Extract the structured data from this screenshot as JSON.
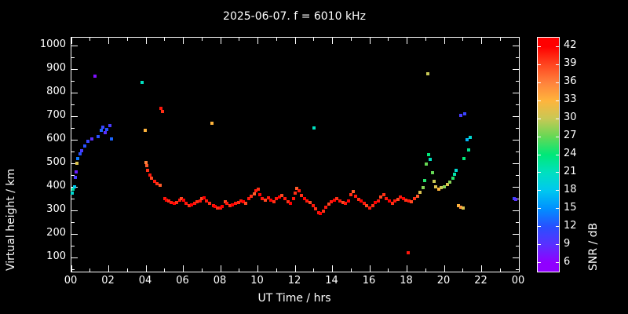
{
  "title": "2025-06-07. f = 6010 kHz",
  "colors": {
    "background": "#000000",
    "foreground": "#ffffff"
  },
  "chart_data": {
    "type": "scatter",
    "title": "2025-06-07. f = 6010 kHz",
    "xlabel": "UT Time / hrs",
    "ylabel": "Virtual height / km",
    "colorbar_label": "SNR / dB",
    "xlim": [
      0,
      24
    ],
    "ylim": [
      40,
      1035
    ],
    "grid": false,
    "x_ticks": [
      {
        "v": 0,
        "label": "00"
      },
      {
        "v": 2,
        "label": "02"
      },
      {
        "v": 4,
        "label": "04"
      },
      {
        "v": 6,
        "label": "06"
      },
      {
        "v": 8,
        "label": "08"
      },
      {
        "v": 10,
        "label": "10"
      },
      {
        "v": 12,
        "label": "12"
      },
      {
        "v": 14,
        "label": "14"
      },
      {
        "v": 16,
        "label": "16"
      },
      {
        "v": 18,
        "label": "18"
      },
      {
        "v": 20,
        "label": "20"
      },
      {
        "v": 22,
        "label": "22"
      },
      {
        "v": 24,
        "label": "00"
      }
    ],
    "y_ticks": [
      100,
      200,
      300,
      400,
      500,
      600,
      700,
      800,
      900,
      1000
    ],
    "colorbar": {
      "min": 4.5,
      "max": 43.5,
      "ticks": [
        6,
        9,
        12,
        15,
        18,
        21,
        24,
        27,
        30,
        33,
        36,
        39,
        42
      ],
      "stops": [
        {
          "v": 6,
          "c": "#9000ff"
        },
        {
          "v": 9,
          "c": "#5a30ff"
        },
        {
          "v": 12,
          "c": "#2850ff"
        },
        {
          "v": 15,
          "c": "#0090ff"
        },
        {
          "v": 18,
          "c": "#00c8f0"
        },
        {
          "v": 21,
          "c": "#00e0c0"
        },
        {
          "v": 24,
          "c": "#00e878"
        },
        {
          "v": 27,
          "c": "#66d855"
        },
        {
          "v": 30,
          "c": "#c8c855"
        },
        {
          "v": 33,
          "c": "#ffb43c"
        },
        {
          "v": 36,
          "c": "#ff823c"
        },
        {
          "v": 39,
          "c": "#ff4620"
        },
        {
          "v": 42,
          "c": "#ff0000"
        }
      ]
    },
    "points": [
      [
        0.05,
        375,
        20
      ],
      [
        0.1,
        390,
        22
      ],
      [
        0.15,
        400,
        18
      ],
      [
        0.2,
        440,
        10
      ],
      [
        0.25,
        465,
        8
      ],
      [
        0.3,
        500,
        31
      ],
      [
        0.35,
        520,
        14
      ],
      [
        0.45,
        540,
        12
      ],
      [
        0.55,
        555,
        10
      ],
      [
        0.7,
        575,
        12
      ],
      [
        0.9,
        595,
        11
      ],
      [
        1.1,
        605,
        9
      ],
      [
        1.25,
        870,
        7
      ],
      [
        1.45,
        615,
        12
      ],
      [
        1.6,
        640,
        13
      ],
      [
        1.7,
        655,
        11
      ],
      [
        1.8,
        630,
        9
      ],
      [
        1.9,
        645,
        12
      ],
      [
        2.05,
        660,
        10
      ],
      [
        2.15,
        605,
        13
      ],
      [
        3.8,
        845,
        21
      ],
      [
        3.95,
        640,
        33
      ],
      [
        4.0,
        505,
        36
      ],
      [
        4.05,
        490,
        38
      ],
      [
        4.1,
        470,
        40
      ],
      [
        4.2,
        452,
        41
      ],
      [
        4.3,
        438,
        39
      ],
      [
        4.45,
        425,
        41
      ],
      [
        4.6,
        415,
        40
      ],
      [
        4.75,
        408,
        38
      ],
      [
        4.8,
        735,
        41
      ],
      [
        4.9,
        722,
        40
      ],
      [
        5.0,
        352,
        41
      ],
      [
        5.1,
        345,
        42
      ],
      [
        5.2,
        340,
        40
      ],
      [
        5.35,
        335,
        41
      ],
      [
        5.5,
        330,
        42
      ],
      [
        5.65,
        335,
        40
      ],
      [
        5.8,
        345,
        41
      ],
      [
        5.9,
        352,
        39
      ],
      [
        6.0,
        345,
        42
      ],
      [
        6.15,
        332,
        41
      ],
      [
        6.3,
        320,
        40
      ],
      [
        6.45,
        325,
        42
      ],
      [
        6.6,
        330,
        41
      ],
      [
        6.75,
        336,
        40
      ],
      [
        6.9,
        342,
        41
      ],
      [
        7.0,
        350,
        39
      ],
      [
        7.1,
        355,
        42
      ],
      [
        7.25,
        340,
        41
      ],
      [
        7.4,
        330,
        40
      ],
      [
        7.55,
        670,
        33
      ],
      [
        7.6,
        322,
        41
      ],
      [
        7.7,
        318,
        42
      ],
      [
        7.85,
        312,
        40
      ],
      [
        8.0,
        310,
        41
      ],
      [
        8.1,
        318,
        42
      ],
      [
        8.25,
        338,
        39
      ],
      [
        8.35,
        330,
        41
      ],
      [
        8.5,
        322,
        40
      ],
      [
        8.65,
        325,
        42
      ],
      [
        8.8,
        330,
        41
      ],
      [
        8.95,
        335,
        40
      ],
      [
        9.1,
        342,
        41
      ],
      [
        9.2,
        338,
        42
      ],
      [
        9.35,
        332,
        39
      ],
      [
        9.5,
        350,
        41
      ],
      [
        9.65,
        360,
        40
      ],
      [
        9.8,
        372,
        38
      ],
      [
        9.9,
        385,
        41
      ],
      [
        10.0,
        390,
        40
      ],
      [
        10.1,
        368,
        42
      ],
      [
        10.25,
        352,
        41
      ],
      [
        10.4,
        345,
        39
      ],
      [
        10.55,
        355,
        41
      ],
      [
        10.7,
        345,
        42
      ],
      [
        10.85,
        338,
        40
      ],
      [
        11.0,
        350,
        41
      ],
      [
        11.15,
        358,
        42
      ],
      [
        11.3,
        365,
        39
      ],
      [
        11.45,
        350,
        41
      ],
      [
        11.6,
        336,
        40
      ],
      [
        11.75,
        330,
        42
      ],
      [
        11.9,
        352,
        41
      ],
      [
        12.0,
        375,
        40
      ],
      [
        12.1,
        395,
        38
      ],
      [
        12.2,
        385,
        41
      ],
      [
        12.35,
        365,
        40
      ],
      [
        12.5,
        350,
        42
      ],
      [
        12.65,
        342,
        41
      ],
      [
        12.8,
        334,
        39
      ],
      [
        12.95,
        322,
        41
      ],
      [
        13.0,
        650,
        21
      ],
      [
        13.1,
        308,
        40
      ],
      [
        13.25,
        292,
        41
      ],
      [
        13.35,
        286,
        42
      ],
      [
        13.5,
        298,
        40
      ],
      [
        13.65,
        315,
        41
      ],
      [
        13.8,
        326,
        39
      ],
      [
        13.95,
        336,
        41
      ],
      [
        14.1,
        345,
        42
      ],
      [
        14.25,
        352,
        40
      ],
      [
        14.4,
        342,
        41
      ],
      [
        14.55,
        333,
        39
      ],
      [
        14.7,
        330,
        41
      ],
      [
        14.85,
        342,
        42
      ],
      [
        15.0,
        368,
        40
      ],
      [
        15.1,
        380,
        38
      ],
      [
        15.25,
        362,
        41
      ],
      [
        15.4,
        348,
        40
      ],
      [
        15.55,
        340,
        42
      ],
      [
        15.7,
        330,
        41
      ],
      [
        15.85,
        320,
        39
      ],
      [
        16.0,
        312,
        41
      ],
      [
        16.15,
        322,
        40
      ],
      [
        16.3,
        335,
        42
      ],
      [
        16.45,
        342,
        41
      ],
      [
        16.6,
        358,
        39
      ],
      [
        16.75,
        368,
        40
      ],
      [
        16.9,
        352,
        41
      ],
      [
        17.05,
        342,
        42
      ],
      [
        17.2,
        332,
        40
      ],
      [
        17.35,
        340,
        41
      ],
      [
        17.5,
        348,
        39
      ],
      [
        17.65,
        358,
        41
      ],
      [
        17.8,
        352,
        42
      ],
      [
        17.95,
        345,
        40
      ],
      [
        18.05,
        120,
        41
      ],
      [
        18.1,
        342,
        41
      ],
      [
        18.25,
        338,
        39
      ],
      [
        18.4,
        350,
        40
      ],
      [
        18.55,
        360,
        38
      ],
      [
        18.7,
        378,
        31
      ],
      [
        18.85,
        398,
        28
      ],
      [
        18.95,
        428,
        25
      ],
      [
        19.05,
        498,
        27
      ],
      [
        19.1,
        880,
        30
      ],
      [
        19.15,
        538,
        24
      ],
      [
        19.25,
        518,
        21
      ],
      [
        19.35,
        462,
        27
      ],
      [
        19.45,
        425,
        30
      ],
      [
        19.55,
        402,
        31
      ],
      [
        19.7,
        392,
        33
      ],
      [
        19.85,
        396,
        30
      ],
      [
        20.0,
        402,
        28
      ],
      [
        20.15,
        410,
        31
      ],
      [
        20.3,
        422,
        28
      ],
      [
        20.45,
        438,
        25
      ],
      [
        20.55,
        455,
        22
      ],
      [
        20.65,
        472,
        20
      ],
      [
        20.75,
        322,
        33
      ],
      [
        20.9,
        315,
        35
      ],
      [
        21.0,
        312,
        31
      ],
      [
        20.9,
        705,
        10
      ],
      [
        21.1,
        712,
        11
      ],
      [
        21.2,
        602,
        17
      ],
      [
        21.3,
        558,
        23
      ],
      [
        21.4,
        612,
        20
      ],
      [
        21.05,
        522,
        24
      ],
      [
        23.75,
        352,
        11
      ],
      [
        23.85,
        346,
        9
      ]
    ]
  }
}
